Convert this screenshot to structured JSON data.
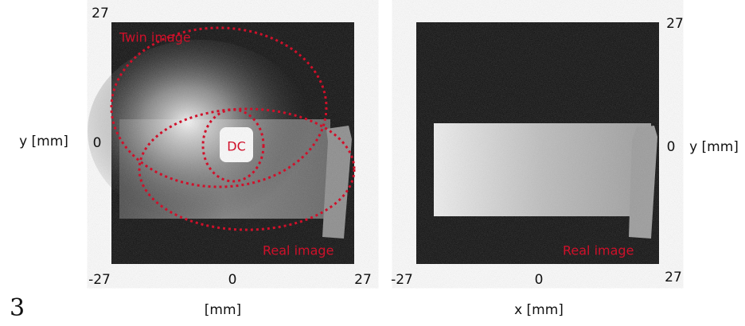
{
  "figure_label": "3",
  "panels": [
    {
      "top_tick": "27",
      "mid_y_tick": "0",
      "corner_tick": "-27",
      "x_ticks": [
        "0",
        "27"
      ],
      "x_label": "[mm]",
      "y_label": "y [mm]",
      "annotations": {
        "twin": "Twin image",
        "dc": "DC",
        "real": "Real image"
      }
    },
    {
      "top_tick": "27",
      "mid_y_tick": "0",
      "corner_tick": "27",
      "x_ticks": [
        "-27",
        "0"
      ],
      "x_label": "x [mm]",
      "y_label": "y [mm]",
      "annotations": {
        "real": "Real image"
      }
    }
  ]
}
